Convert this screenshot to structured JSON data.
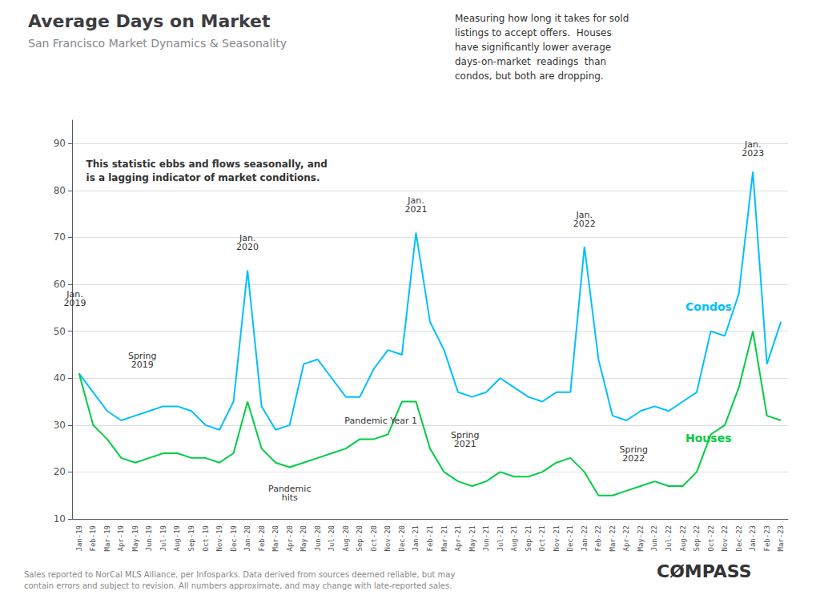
{
  "chart_data": {
    "type": "line",
    "title": "Average Days on Market",
    "subtitle": "San Francisco Market Dynamics & Seasonality",
    "categories": [
      "Jan-19",
      "Feb-19",
      "Mar-19",
      "Apr-19",
      "May-19",
      "Jun-19",
      "Jul-19",
      "Aug-19",
      "Sep-19",
      "Oct-19",
      "Nov-19",
      "Dec-19",
      "Jan-20",
      "Feb-20",
      "Mar-20",
      "Apr-20",
      "May-20",
      "Jun-20",
      "Jul-20",
      "Aug-20",
      "Sep-20",
      "Oct-20",
      "Nov-20",
      "Dec-20",
      "Jan-21",
      "Feb-21",
      "Mar-21",
      "Apr-21",
      "May-21",
      "Jun-21",
      "Jul-21",
      "Aug-21",
      "Sep-21",
      "Oct-21",
      "Nov-21",
      "Dec-21",
      "Jan-22",
      "Feb-22",
      "Mar-22",
      "Apr-22",
      "May-22",
      "Jun-22",
      "Jul-22",
      "Aug-22",
      "Sep-22",
      "Oct-22",
      "Nov-22",
      "Dec-22",
      "Jan-23",
      "Feb-23",
      "Mar-23"
    ],
    "series": [
      {
        "name": "Condos",
        "color": "#00bfff",
        "values": [
          41,
          37,
          33,
          31,
          32,
          33,
          34,
          34,
          33,
          30,
          29,
          35,
          63,
          34,
          29,
          30,
          43,
          44,
          40,
          36,
          36,
          42,
          46,
          45,
          71,
          52,
          46,
          37,
          36,
          37,
          40,
          38,
          36,
          35,
          37,
          37,
          68,
          44,
          32,
          31,
          33,
          34,
          33,
          35,
          37,
          50,
          49,
          58,
          84,
          43,
          52
        ]
      },
      {
        "name": "Houses",
        "color": "#00cc44",
        "values": [
          41,
          30,
          27,
          23,
          22,
          23,
          24,
          24,
          23,
          23,
          22,
          24,
          35,
          25,
          22,
          21,
          22,
          23,
          24,
          25,
          27,
          27,
          28,
          35,
          35,
          25,
          20,
          18,
          17,
          18,
          20,
          19,
          19,
          20,
          22,
          23,
          20,
          15,
          15,
          16,
          17,
          18,
          17,
          17,
          20,
          28,
          30,
          38,
          50,
          32,
          31
        ]
      }
    ],
    "ylim": [
      10,
      95
    ],
    "yticks": [
      10,
      20,
      30,
      40,
      50,
      60,
      70,
      80,
      90
    ],
    "grid": true,
    "annotations": [
      "This statistic ebbs and flows seasonally, and\nis a lagging indicator of market conditions.",
      "Measuring how long it takes for sold\nlistings to accept offers.  Houses\nhave significantly lower average\ndays-on-market  readings  than\ncondos, but both are dropping.",
      "Jan.\n2019",
      "Spring\n2019",
      "Jan.\n2020",
      "Pandemic\nhits",
      "Pandemic Year 1",
      "Jan.\n2021",
      "Spring\n2021",
      "Jan.\n2022",
      "Spring\n2022",
      "Jan.\n2023",
      "Sales reported to NorCal MLS Alliance, per Infosparks. Data derived from sources deemed reliable, but may\ncontain errors and subject to revision. All numbers approximate, and may change with late-reported sales.",
      "CØMPASS"
    ]
  }
}
